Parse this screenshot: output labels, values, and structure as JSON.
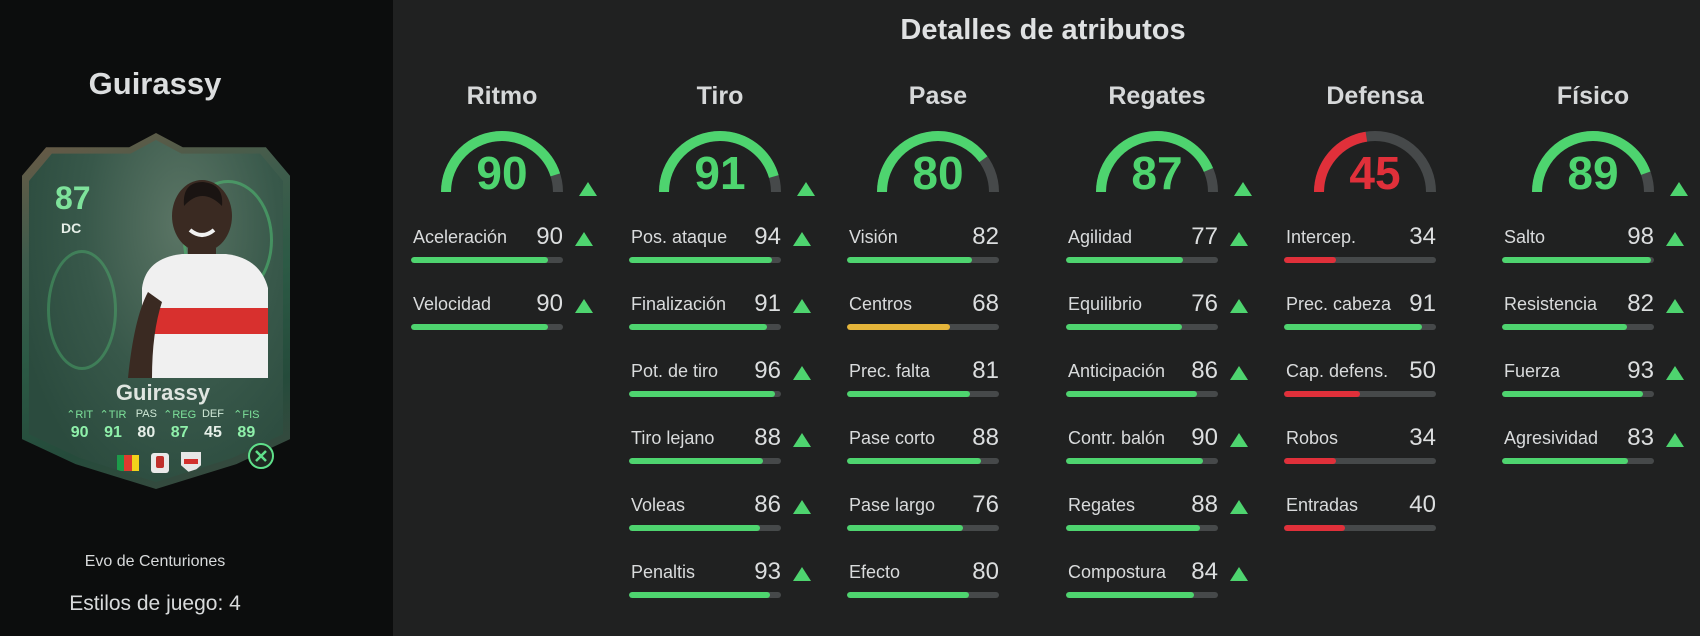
{
  "player": {
    "name": "Guirassy",
    "card": {
      "rating": "87",
      "position": "DC",
      "name": "Guirassy",
      "stats": [
        {
          "label": "RIT",
          "value": "90",
          "boosted": true
        },
        {
          "label": "TIR",
          "value": "91",
          "boosted": true
        },
        {
          "label": "PAS",
          "value": "80",
          "boosted": false
        },
        {
          "label": "REG",
          "value": "87",
          "boosted": true
        },
        {
          "label": "DEF",
          "value": "45",
          "boosted": false
        },
        {
          "label": "FIS",
          "value": "89",
          "boosted": true
        }
      ],
      "nation_flag_colors": [
        "#1d9a4a",
        "#e03a2e",
        "#f2d21b"
      ]
    },
    "evolution_name": "Evo de Centuriones",
    "playstyles_text": "Estilos de juego: 4"
  },
  "section_title": "Detalles de atributos",
  "colors": {
    "green": "#4ed46f",
    "red": "#e0303a",
    "yellow": "#e5b53a",
    "track": "#46494a"
  },
  "categories": [
    {
      "title": "Ritmo",
      "value": 90,
      "color": "green",
      "boosted": true,
      "attributes": [
        {
          "label": "Aceleración",
          "value": 90,
          "color": "green",
          "boosted": true
        },
        {
          "label": "Velocidad",
          "value": 90,
          "color": "green",
          "boosted": true
        }
      ]
    },
    {
      "title": "Tiro",
      "value": 91,
      "color": "green",
      "boosted": true,
      "attributes": [
        {
          "label": "Pos. ataque",
          "value": 94,
          "color": "green",
          "boosted": true
        },
        {
          "label": "Finalización",
          "value": 91,
          "color": "green",
          "boosted": true
        },
        {
          "label": "Pot. de tiro",
          "value": 96,
          "color": "green",
          "boosted": true
        },
        {
          "label": "Tiro lejano",
          "value": 88,
          "color": "green",
          "boosted": true
        },
        {
          "label": "Voleas",
          "value": 86,
          "color": "green",
          "boosted": true
        },
        {
          "label": "Penaltis",
          "value": 93,
          "color": "green",
          "boosted": true
        }
      ]
    },
    {
      "title": "Pase",
      "value": 80,
      "color": "green",
      "boosted": false,
      "attributes": [
        {
          "label": "Visión",
          "value": 82,
          "color": "green",
          "boosted": false
        },
        {
          "label": "Centros",
          "value": 68,
          "color": "yellow",
          "boosted": false
        },
        {
          "label": "Prec. falta",
          "value": 81,
          "color": "green",
          "boosted": false
        },
        {
          "label": "Pase corto",
          "value": 88,
          "color": "green",
          "boosted": false
        },
        {
          "label": "Pase largo",
          "value": 76,
          "color": "green",
          "boosted": false
        },
        {
          "label": "Efecto",
          "value": 80,
          "color": "green",
          "boosted": false
        }
      ]
    },
    {
      "title": "Regates",
      "value": 87,
      "color": "green",
      "boosted": true,
      "attributes": [
        {
          "label": "Agilidad",
          "value": 77,
          "color": "green",
          "boosted": true
        },
        {
          "label": "Equilibrio",
          "value": 76,
          "color": "green",
          "boosted": true
        },
        {
          "label": "Anticipación",
          "value": 86,
          "color": "green",
          "boosted": true
        },
        {
          "label": "Contr. balón",
          "value": 90,
          "color": "green",
          "boosted": true
        },
        {
          "label": "Regates",
          "value": 88,
          "color": "green",
          "boosted": true
        },
        {
          "label": "Compostura",
          "value": 84,
          "color": "green",
          "boosted": true
        }
      ]
    },
    {
      "title": "Defensa",
      "value": 45,
      "color": "red",
      "boosted": false,
      "attributes": [
        {
          "label": "Intercep.",
          "value": 34,
          "color": "red",
          "boosted": false
        },
        {
          "label": "Prec. cabeza",
          "value": 91,
          "color": "green",
          "boosted": false
        },
        {
          "label": "Cap. defens.",
          "value": 50,
          "color": "red",
          "boosted": false
        },
        {
          "label": "Robos",
          "value": 34,
          "color": "red",
          "boosted": false
        },
        {
          "label": "Entradas",
          "value": 40,
          "color": "red",
          "boosted": false
        }
      ]
    },
    {
      "title": "Físico",
      "value": 89,
      "color": "green",
      "boosted": true,
      "attributes": [
        {
          "label": "Salto",
          "value": 98,
          "color": "green",
          "boosted": true
        },
        {
          "label": "Resistencia",
          "value": 82,
          "color": "green",
          "boosted": true
        },
        {
          "label": "Fuerza",
          "value": 93,
          "color": "green",
          "boosted": true
        },
        {
          "label": "Agresividad",
          "value": 83,
          "color": "green",
          "boosted": true
        }
      ]
    }
  ]
}
